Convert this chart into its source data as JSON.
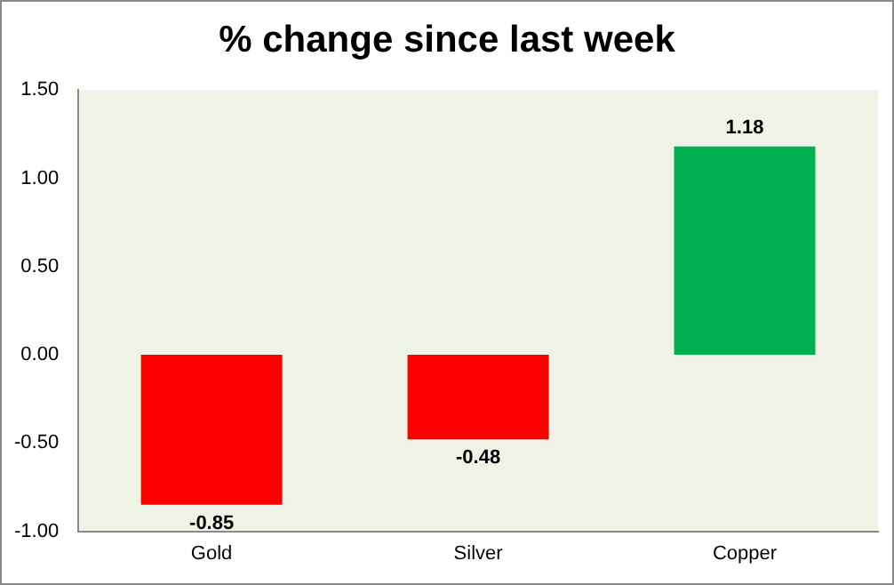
{
  "chart_data": {
    "type": "bar",
    "title": "% change since last week",
    "categories": [
      "Gold",
      "Silver",
      "Copper"
    ],
    "values": [
      -0.85,
      -0.48,
      1.18
    ],
    "colors": [
      "#ff0000",
      "#ff0000",
      "#00b050"
    ],
    "ylim": [
      -1,
      1.5
    ],
    "yticks": [
      {
        "value": -1,
        "label": "-1.00"
      },
      {
        "value": -0.5,
        "label": "-0.50"
      },
      {
        "value": 0,
        "label": "0.00"
      },
      {
        "value": 0.5,
        "label": "0.50"
      },
      {
        "value": 1,
        "label": "1.00"
      },
      {
        "value": 1.5,
        "label": "1.50"
      }
    ],
    "data_labels": true,
    "grid": false,
    "legend": false
  }
}
